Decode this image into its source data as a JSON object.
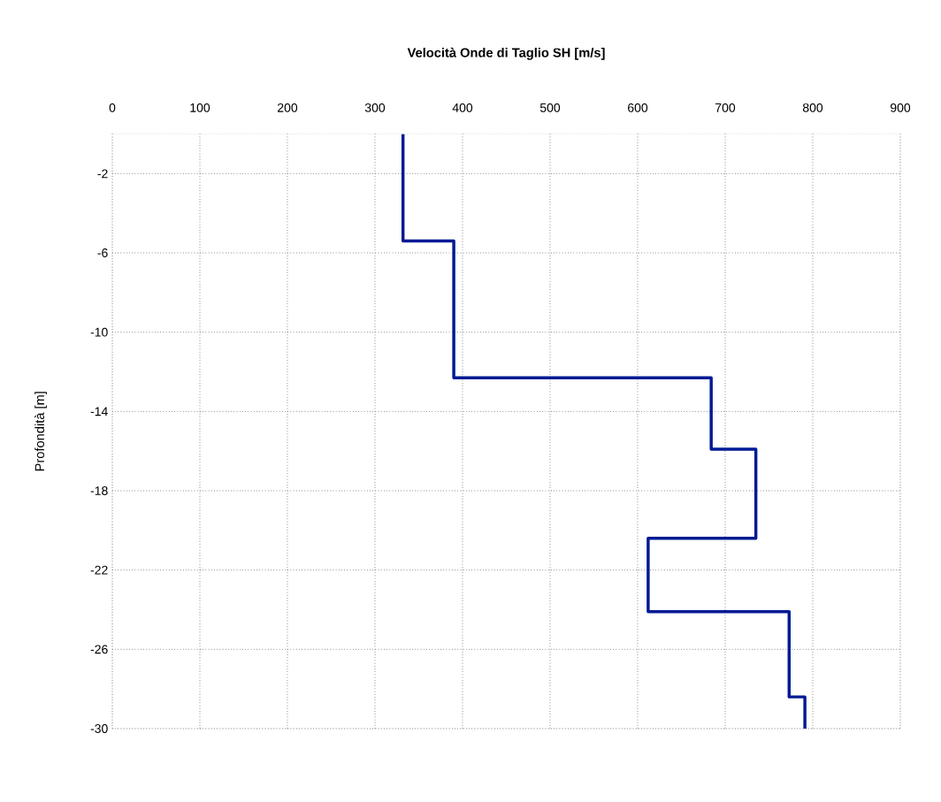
{
  "chart_data": {
    "type": "line",
    "xlabel": "Velocità Onde di Taglio SH [m/s]",
    "ylabel": "Profondità [m]",
    "x": [
      332,
      332,
      390,
      390,
      684,
      684,
      735,
      735,
      612,
      612,
      773,
      773,
      791,
      791
    ],
    "series": [
      {
        "color": "#001a94",
        "values": [
          0,
          -5.4,
          -5.4,
          -12.3,
          -12.3,
          -15.9,
          -15.9,
          -20.4,
          -20.4,
          -24.1,
          -24.1,
          -28.4,
          -28.4,
          -30
        ]
      }
    ],
    "xlim": [
      0,
      900
    ],
    "xticks": [
      0,
      100,
      200,
      300,
      400,
      500,
      600,
      700,
      800,
      900
    ],
    "ylim": [
      -30,
      0
    ],
    "yticks": [
      -2,
      -6,
      -10,
      -14,
      -18,
      -22,
      -26,
      -30
    ],
    "grid": true,
    "line_style": "solid",
    "marker": "none"
  }
}
